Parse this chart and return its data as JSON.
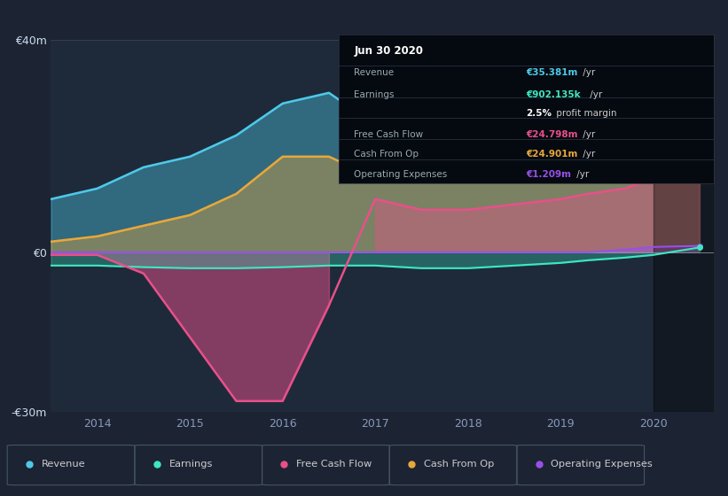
{
  "bg_color": "#1c2333",
  "plot_bg_color": "#1e2a3a",
  "years": [
    2013.5,
    2014.0,
    2014.5,
    2015.0,
    2015.5,
    2016.0,
    2016.5,
    2017.0,
    2017.5,
    2018.0,
    2018.5,
    2019.0,
    2019.3,
    2019.7,
    2020.0,
    2020.5
  ],
  "revenue": [
    10,
    12,
    16,
    18,
    22,
    28,
    30,
    24,
    22,
    22,
    24,
    26,
    28,
    30,
    33,
    35.4
  ],
  "earnings": [
    -2.5,
    -2.5,
    -2.8,
    -3.0,
    -3.0,
    -2.8,
    -2.5,
    -2.5,
    -3.0,
    -3.0,
    -2.5,
    -2.0,
    -1.5,
    -1.0,
    -0.5,
    0.9
  ],
  "free_cash_flow": [
    -0.5,
    -0.5,
    -4,
    -16,
    -28,
    -28,
    -10,
    10,
    8,
    8,
    9,
    10,
    11,
    12,
    14,
    14
  ],
  "cash_from_op": [
    2,
    3,
    5,
    7,
    11,
    18,
    18,
    14,
    14,
    15,
    16,
    16,
    17,
    22,
    24,
    25
  ],
  "op_expenses": [
    0,
    0,
    0,
    0,
    0,
    0,
    0,
    0,
    0,
    0,
    0,
    0,
    0,
    0.5,
    1.0,
    1.2
  ],
  "revenue_color": "#4ec9e8",
  "earnings_color": "#3de8c0",
  "fcf_color": "#e8508a",
  "cashop_color": "#e8a83a",
  "opex_color": "#9850e8",
  "ylim": [
    -30,
    40
  ],
  "xlim": [
    2013.5,
    2020.65
  ],
  "yticks": [
    -30,
    0,
    40
  ],
  "ytick_labels": [
    "-€30m",
    "€0",
    "€40m"
  ],
  "xticks": [
    2014,
    2015,
    2016,
    2017,
    2018,
    2019,
    2020
  ],
  "info_title": "Jun 30 2020",
  "legend_items": [
    {
      "label": "Revenue",
      "color": "#4ec9e8"
    },
    {
      "label": "Earnings",
      "color": "#3de8c0"
    },
    {
      "label": "Free Cash Flow",
      "color": "#e8508a"
    },
    {
      "label": "Cash From Op",
      "color": "#e8a83a"
    },
    {
      "label": "Operating Expenses",
      "color": "#9850e8"
    }
  ]
}
